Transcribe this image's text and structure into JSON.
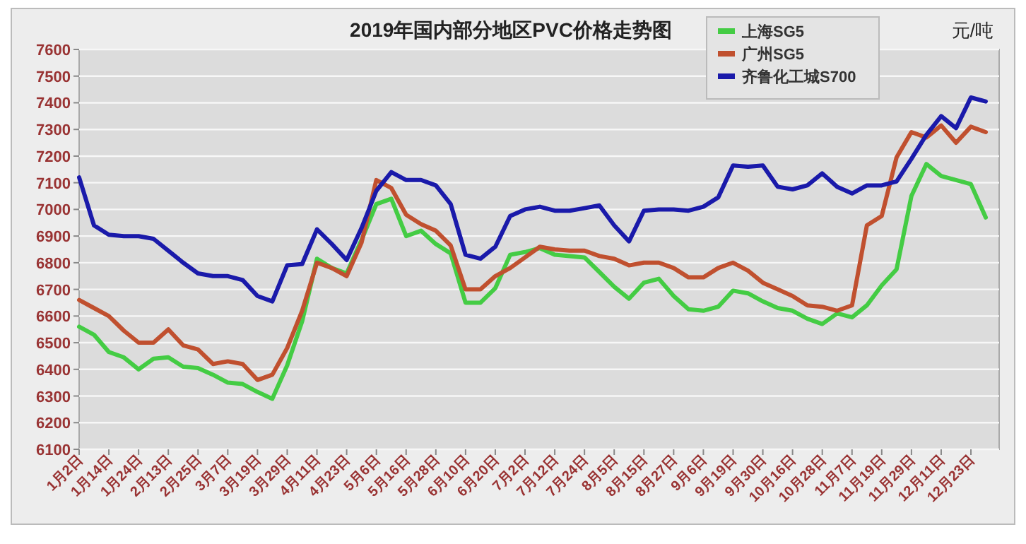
{
  "chart_data": {
    "type": "line",
    "title": "2019年国内部分地区PVC价格走势图",
    "ylabel": "元/吨",
    "categories": [
      "1月2日",
      null,
      "1月14日",
      null,
      "1月24日",
      null,
      "2月13日",
      null,
      "2月25日",
      null,
      "3月7日",
      null,
      "3月19日",
      null,
      "3月29日",
      null,
      "4月11日",
      null,
      "4月23日",
      null,
      "5月6日",
      null,
      "5月16日",
      null,
      "5月28日",
      null,
      "6月10日",
      null,
      "6月20日",
      null,
      "7月2日",
      null,
      "7月12日",
      null,
      "7月24日",
      null,
      "8月5日",
      null,
      "8月15日",
      null,
      "8月27日",
      null,
      "9月6日",
      null,
      "9月19日",
      null,
      "9月30日",
      null,
      "10月16日",
      null,
      "10月28日",
      null,
      "11月7日",
      null,
      "11月19日",
      null,
      "11月29日",
      null,
      "12月11日",
      null,
      "12月23日",
      null
    ],
    "ylim": [
      6100,
      7600
    ],
    "yticks": [
      6100,
      6200,
      6300,
      6400,
      6500,
      6600,
      6700,
      6800,
      6900,
      7000,
      7100,
      7200,
      7300,
      7400,
      7500,
      7600
    ],
    "grid": "y",
    "legend": "top right",
    "marker": "none",
    "line_style": "solid",
    "series": [
      {
        "name": "上海SG5",
        "color": "#44cc44",
        "values": [
          6560,
          6530,
          6465,
          6445,
          6400,
          6440,
          6445,
          6410,
          6405,
          6380,
          6350,
          6345,
          6315,
          6290,
          6415,
          6580,
          6815,
          6780,
          6760,
          6885,
          7020,
          7040,
          6900,
          6920,
          6870,
          6835,
          6650,
          6650,
          6705,
          6830,
          6840,
          6855,
          6830,
          6825,
          6820,
          6765,
          6710,
          6665,
          6725,
          6740,
          6675,
          6625,
          6620,
          6635,
          6695,
          6685,
          6655,
          6630,
          6620,
          6590,
          6570,
          6610,
          6595,
          6640,
          6715,
          6775,
          7050,
          7170,
          7125,
          7110,
          7095,
          6970
        ]
      },
      {
        "name": "广州SG5",
        "color": "#c0502f",
        "values": [
          6660,
          6630,
          6600,
          6545,
          6500,
          6500,
          6550,
          6490,
          6475,
          6420,
          6430,
          6420,
          6360,
          6380,
          6480,
          6620,
          6800,
          6780,
          6750,
          6875,
          7110,
          7080,
          6980,
          6945,
          6920,
          6865,
          6700,
          6700,
          6750,
          6780,
          6820,
          6860,
          6850,
          6845,
          6845,
          6825,
          6815,
          6790,
          6800,
          6800,
          6780,
          6745,
          6745,
          6780,
          6800,
          6770,
          6725,
          6700,
          6675,
          6640,
          6635,
          6620,
          6640,
          6940,
          6975,
          7195,
          7290,
          7270,
          7315,
          7250,
          7310,
          7290
        ]
      },
      {
        "name": "齐鲁化工城S700",
        "color": "#1a1aaa",
        "values": [
          7120,
          6940,
          6905,
          6900,
          6900,
          6890,
          6845,
          6800,
          6760,
          6750,
          6750,
          6735,
          6675,
          6655,
          6790,
          6795,
          6925,
          6870,
          6810,
          6930,
          7070,
          7140,
          7110,
          7110,
          7090,
          7020,
          6830,
          6815,
          6860,
          6975,
          7000,
          7010,
          6995,
          6995,
          7005,
          7015,
          6940,
          6880,
          6995,
          7000,
          7000,
          6995,
          7010,
          7045,
          7165,
          7160,
          7165,
          7085,
          7075,
          7090,
          7135,
          7085,
          7060,
          7090,
          7090,
          7105,
          7190,
          7280,
          7350,
          7305,
          7420,
          7405
        ]
      }
    ]
  }
}
